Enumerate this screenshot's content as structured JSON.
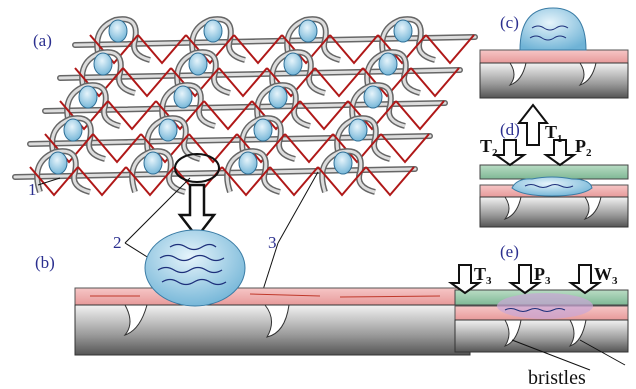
{
  "panels": {
    "a": "(a)",
    "b": "(b)",
    "c": "(c)",
    "d": "(d)",
    "e": "(e)"
  },
  "callouts": [
    "1",
    "2",
    "3"
  ],
  "forces": {
    "c": [
      {
        "main": "T",
        "sub": "1"
      }
    ],
    "d": [
      {
        "main": "T",
        "sub": "2"
      },
      {
        "main": "P",
        "sub": "2"
      }
    ],
    "e": [
      {
        "main": "T",
        "sub": "3"
      },
      {
        "main": "P",
        "sub": "3"
      },
      {
        "main": "W",
        "sub": "3"
      }
    ]
  },
  "bristles": "bristles"
}
